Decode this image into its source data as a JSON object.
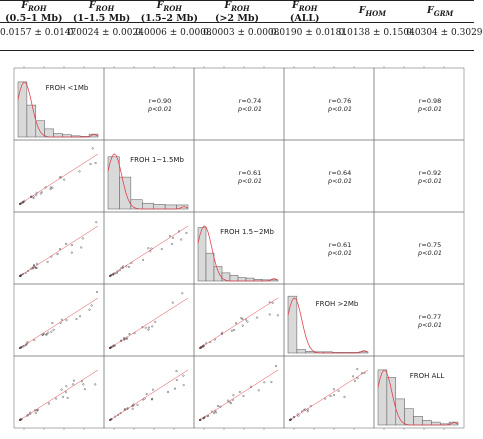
{
  "table": {
    "columns": [
      {
        "symbol": "F",
        "sub": "ROH",
        "range": "(0.5–1 Mb)",
        "value": "0.0157 ± 0.0147"
      },
      {
        "symbol": "F",
        "sub": "ROH",
        "range": "(1–1.5 Mb)",
        "value": "0.0024 ± 0.0024"
      },
      {
        "symbol": "F",
        "sub": "ROH",
        "range": "(1.5–2 Mb)",
        "value": "0.0006 ± 0.0008"
      },
      {
        "symbol": "F",
        "sub": "ROH",
        "range": "(>2 Mb)",
        "value": "0.0003 ± 0.0008"
      },
      {
        "symbol": "F",
        "sub": "ROH",
        "range": "(ALL)",
        "value": "0.0190 ± 0.0181"
      },
      {
        "symbol": "F",
        "sub": "HOM",
        "range": "",
        "value": "0.0138 ± 0.1504"
      },
      {
        "symbol": "F",
        "sub": "GRM",
        "range": "",
        "value": "0.0304 ± 0.3029"
      }
    ]
  },
  "matrix": {
    "labels": [
      "FROH <1Mb",
      "FROH 1~1.5Mb",
      "FROH 1.5~2Mb",
      "FROH >2Mb",
      "FROH ALL"
    ],
    "correlations": [
      {
        "row": 0,
        "col": 1,
        "r": "r=0.90",
        "p": "p<0.01"
      },
      {
        "row": 0,
        "col": 2,
        "r": "r=0.74",
        "p": "p<0.01"
      },
      {
        "row": 0,
        "col": 3,
        "r": "r=0.76",
        "p": "p<0.01"
      },
      {
        "row": 0,
        "col": 4,
        "r": "r=0.98",
        "p": "p<0.01"
      },
      {
        "row": 1,
        "col": 2,
        "r": "r=0.61",
        "p": "p<0.01"
      },
      {
        "row": 1,
        "col": 3,
        "r": "r=0.64",
        "p": "p<0.01"
      },
      {
        "row": 1,
        "col": 4,
        "r": "r=0.92",
        "p": "p<0.01"
      },
      {
        "row": 2,
        "col": 3,
        "r": "r=0.61",
        "p": "p<0.01"
      },
      {
        "row": 2,
        "col": 4,
        "r": "r=0.75",
        "p": "p<0.01"
      },
      {
        "row": 3,
        "col": 4,
        "r": "r=0.77",
        "p": "p<0.01"
      }
    ],
    "histograms": [
      [
        0.95,
        0.55,
        0.28,
        0.14,
        0.06,
        0.04,
        0.02,
        0.01,
        0.05
      ],
      [
        0.9,
        0.55,
        0.16,
        0.1,
        0.08,
        0.07,
        0.07
      ],
      [
        0.92,
        0.48,
        0.25,
        0.14,
        0.1,
        0.06,
        0.05,
        0.03,
        0.02,
        0.02
      ],
      [
        0.98,
        0.06,
        0.03,
        0.02,
        0.02,
        0.01,
        0.01,
        0.01,
        0.02
      ],
      [
        0.95,
        0.82,
        0.45,
        0.28,
        0.15,
        0.08,
        0.05,
        0.02,
        0.05
      ]
    ],
    "colors": {
      "bar_fill": "#d9d9d9",
      "density": "#e0434d",
      "scatter_line": "#e0434d",
      "frame": "#777777"
    }
  }
}
